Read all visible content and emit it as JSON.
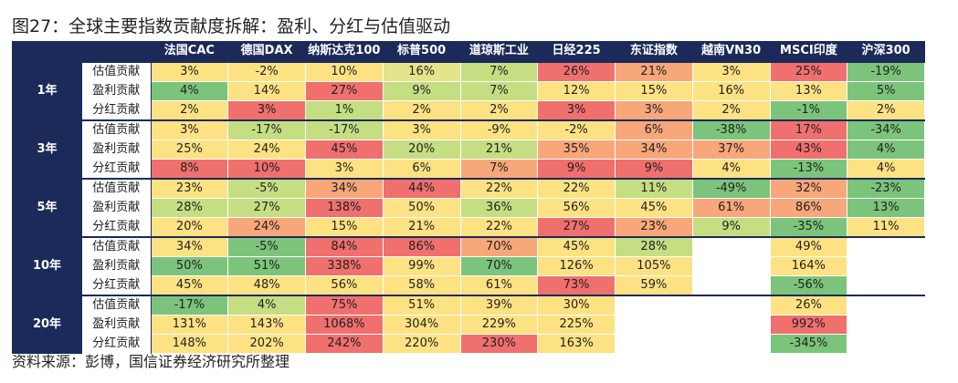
{
  "title": "图27：全球主要指数贡献度拆解：盈利、分红与估值驱动",
  "table": {
    "columns": [
      "法国CAC",
      "德国DAX",
      "纳斯达克100",
      "标普500",
      "道琼斯工业",
      "日经225",
      "东证指数",
      "越南VN30",
      "MSCI印度",
      "沪深300"
    ],
    "groups": [
      {
        "label": "1年",
        "rows": [
          {
            "label": "估值贡献",
            "cells": [
              "3%",
              "-2%",
              "10%",
              "16%",
              "7%",
              "26%",
              "21%",
              "3%",
              "25%",
              "-19%"
            ],
            "colors": [
              "#fde283",
              "#fde283",
              "#fde283",
              "#e4e48a",
              "#c5de82",
              "#f0706e",
              "#f8a77a",
              "#fde283",
              "#f0706e",
              "#7cc47b"
            ]
          },
          {
            "label": "盈利贡献",
            "cells": [
              "4%",
              "14%",
              "27%",
              "9%",
              "7%",
              "12%",
              "15%",
              "16%",
              "13%",
              "5%"
            ],
            "colors": [
              "#7cc47b",
              "#fde283",
              "#f0706e",
              "#c5de82",
              "#c5de82",
              "#fde283",
              "#fde283",
              "#fde283",
              "#fde283",
              "#7cc47b"
            ]
          },
          {
            "label": "分红贡献",
            "cells": [
              "2%",
              "3%",
              "1%",
              "2%",
              "2%",
              "3%",
              "3%",
              "2%",
              "-1%",
              "2%"
            ],
            "colors": [
              "#fde283",
              "#f0706e",
              "#c5de82",
              "#fde283",
              "#fde283",
              "#f0706e",
              "#f8a77a",
              "#fde283",
              "#7cc47b",
              "#fde283"
            ]
          }
        ]
      },
      {
        "label": "3年",
        "rows": [
          {
            "label": "估值贡献",
            "cells": [
              "3%",
              "-17%",
              "-17%",
              "3%",
              "-9%",
              "-2%",
              "6%",
              "-38%",
              "17%",
              "-34%"
            ],
            "colors": [
              "#fde283",
              "#c5de82",
              "#c5de82",
              "#fde283",
              "#fde283",
              "#fde283",
              "#f8a77a",
              "#7cc47b",
              "#f0706e",
              "#7cc47b"
            ]
          },
          {
            "label": "盈利贡献",
            "cells": [
              "25%",
              "24%",
              "45%",
              "20%",
              "21%",
              "35%",
              "34%",
              "37%",
              "43%",
              "4%"
            ],
            "colors": [
              "#fde283",
              "#fde283",
              "#f0706e",
              "#c5de82",
              "#c5de82",
              "#f8a77a",
              "#f8a77a",
              "#f8a77a",
              "#f0706e",
              "#7cc47b"
            ]
          },
          {
            "label": "分红贡献",
            "cells": [
              "8%",
              "10%",
              "3%",
              "6%",
              "7%",
              "9%",
              "9%",
              "4%",
              "-13%",
              "4%"
            ],
            "colors": [
              "#f0706e",
              "#f0706e",
              "#fde283",
              "#fde283",
              "#f8a77a",
              "#f0706e",
              "#f0706e",
              "#fde283",
              "#7cc47b",
              "#fde283"
            ]
          }
        ]
      },
      {
        "label": "5年",
        "rows": [
          {
            "label": "估值贡献",
            "cells": [
              "23%",
              "-5%",
              "34%",
              "44%",
              "22%",
              "22%",
              "11%",
              "-49%",
              "32%",
              "-23%"
            ],
            "colors": [
              "#fde283",
              "#c5de82",
              "#f8a77a",
              "#f0706e",
              "#fde283",
              "#fde283",
              "#c5de82",
              "#7cc47b",
              "#f8a77a",
              "#7cc47b"
            ]
          },
          {
            "label": "盈利贡献",
            "cells": [
              "28%",
              "27%",
              "138%",
              "50%",
              "36%",
              "56%",
              "45%",
              "61%",
              "86%",
              "13%"
            ],
            "colors": [
              "#c5de82",
              "#c5de82",
              "#f0706e",
              "#fde283",
              "#c5de82",
              "#fde283",
              "#fde283",
              "#f8a77a",
              "#f8a77a",
              "#7cc47b"
            ]
          },
          {
            "label": "分红贡献",
            "cells": [
              "20%",
              "24%",
              "15%",
              "21%",
              "22%",
              "27%",
              "23%",
              "9%",
              "-35%",
              "11%"
            ],
            "colors": [
              "#fde283",
              "#f8a77a",
              "#fde283",
              "#fde283",
              "#fde283",
              "#f0706e",
              "#f8a77a",
              "#c5de82",
              "#7cc47b",
              "#fde283"
            ]
          }
        ]
      },
      {
        "label": "10年",
        "rows": [
          {
            "label": "估值贡献",
            "cells": [
              "34%",
              "-5%",
              "84%",
              "86%",
              "70%",
              "45%",
              "28%",
              null,
              "49%",
              null
            ],
            "colors": [
              "#fde283",
              "#7cc47b",
              "#f0706e",
              "#f0706e",
              "#f8a77a",
              "#fde283",
              "#c5de82",
              "#ffffff",
              "#fde283",
              "#ffffff"
            ]
          },
          {
            "label": "盈利贡献",
            "cells": [
              "50%",
              "51%",
              "338%",
              "99%",
              "70%",
              "126%",
              "105%",
              null,
              "164%",
              null
            ],
            "colors": [
              "#7cc47b",
              "#7cc47b",
              "#f0706e",
              "#fde283",
              "#7cc47b",
              "#fde283",
              "#fde283",
              "#ffffff",
              "#fde283",
              "#ffffff"
            ]
          },
          {
            "label": "分红贡献",
            "cells": [
              "45%",
              "48%",
              "56%",
              "58%",
              "61%",
              "73%",
              "59%",
              null,
              "-56%",
              null
            ],
            "colors": [
              "#fde283",
              "#fde283",
              "#fde283",
              "#fde283",
              "#fde283",
              "#f0706e",
              "#fde283",
              "#ffffff",
              "#7cc47b",
              "#ffffff"
            ]
          }
        ]
      },
      {
        "label": "20年",
        "rows": [
          {
            "label": "估值贡献",
            "cells": [
              "-17%",
              "4%",
              "75%",
              "51%",
              "39%",
              "30%",
              null,
              null,
              "26%",
              null
            ],
            "colors": [
              "#7cc47b",
              "#c5de82",
              "#f0706e",
              "#fde283",
              "#fde283",
              "#fde283",
              "#ffffff",
              "#ffffff",
              "#fde283",
              "#ffffff"
            ]
          },
          {
            "label": "盈利贡献",
            "cells": [
              "131%",
              "143%",
              "1068%",
              "304%",
              "229%",
              "225%",
              null,
              null,
              "992%",
              null
            ],
            "colors": [
              "#fde283",
              "#fde283",
              "#f0706e",
              "#fde283",
              "#fde283",
              "#fde283",
              "#ffffff",
              "#ffffff",
              "#f0706e",
              "#ffffff"
            ]
          },
          {
            "label": "分红贡献",
            "cells": [
              "148%",
              "202%",
              "242%",
              "220%",
              "230%",
              "163%",
              null,
              null,
              "-345%",
              null
            ],
            "colors": [
              "#fde283",
              "#fde283",
              "#f0706e",
              "#fde283",
              "#f0706e",
              "#fde283",
              "#ffffff",
              "#ffffff",
              "#7cc47b",
              "#ffffff"
            ]
          }
        ]
      }
    ]
  },
  "source": "资料来源：彭博，国信证券经济研究所整理"
}
